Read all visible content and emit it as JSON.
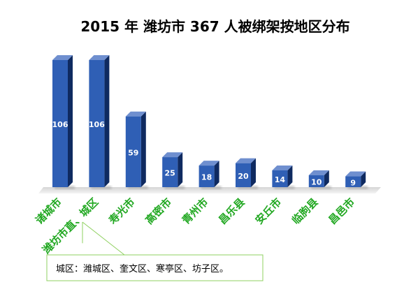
{
  "chart_data": {
    "type": "bar",
    "title": "2015 年  潍坊市 367 人被绑架按地区分布",
    "xlabel": "",
    "ylabel": "",
    "categories": [
      "诸城市",
      "潍坊市直、城区",
      "寿光市",
      "高密市",
      "青州市",
      "昌乐县",
      "安丘市",
      "临朐县",
      "昌邑市"
    ],
    "values": [
      106,
      106,
      59,
      25,
      18,
      20,
      14,
      10,
      9
    ],
    "ylim": [
      0,
      110
    ],
    "grid": false,
    "legend": "none",
    "data_labels": true,
    "annotation": "城区：潍城区、奎文区、寒亭区、坊子区。"
  },
  "colors": {
    "bar_front": "#2f5fb5",
    "bar_side": "#0f2a60",
    "bar_top": "#6f8fcf",
    "category_text": "#22a822",
    "title_text": "#000000",
    "value_text": "#ffffff",
    "floor": "#dcdcdc",
    "annotation_border": "#8fd060"
  }
}
